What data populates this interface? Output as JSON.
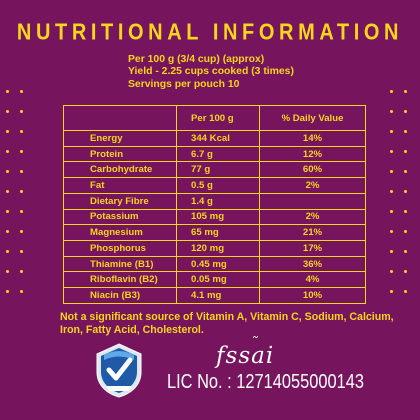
{
  "colors": {
    "background": "#76145e",
    "accent": "#f7d51c",
    "white": "#ffffff"
  },
  "title": "NUTRITIONAL INFORMATION",
  "serving_info": [
    "Per 100 g (3/4 cup) (approx)",
    "Yield - 2.25 cups cooked (3 times)",
    "Servings per pouch 10"
  ],
  "table": {
    "headers": [
      "",
      "Per 100 g",
      "% Daily Value"
    ],
    "rows": [
      {
        "nutrient": "Energy",
        "per100": "344 Kcal",
        "dv": "14%"
      },
      {
        "nutrient": "Protein",
        "per100": "6.7 g",
        "dv": "12%"
      },
      {
        "nutrient": "Carbohydrate",
        "per100": "77 g",
        "dv": "60%"
      },
      {
        "nutrient": "Fat",
        "per100": "0.5 g",
        "dv": "2%"
      },
      {
        "nutrient": "Dietary Fibre",
        "per100": "1.4 g",
        "dv": ""
      },
      {
        "nutrient": "Potassium",
        "per100": "105 mg",
        "dv": "2%"
      },
      {
        "nutrient": "Magnesium",
        "per100": "65 mg",
        "dv": "21%"
      },
      {
        "nutrient": "Phosphorus",
        "per100": "120 mg",
        "dv": "17%"
      },
      {
        "nutrient": "Thiamine (B1)",
        "per100": "0.45 mg",
        "dv": "36%"
      },
      {
        "nutrient": "Riboflavin (B2)",
        "per100": "0.05 mg",
        "dv": "4%"
      },
      {
        "nutrient": "Niacin (B3)",
        "per100": "4.1 mg",
        "dv": "10%"
      }
    ]
  },
  "footnote": "Not a significant source of Vitamin A, Vitamin C, Sodium, Calcium, Iron, Fatty Acid, Cholesterol.",
  "certification_badge": {
    "icon": "certified-checkmark-badge-icon"
  },
  "fssai": {
    "logo_text": "fssai",
    "license": "LIC No. : 12714055000143"
  }
}
